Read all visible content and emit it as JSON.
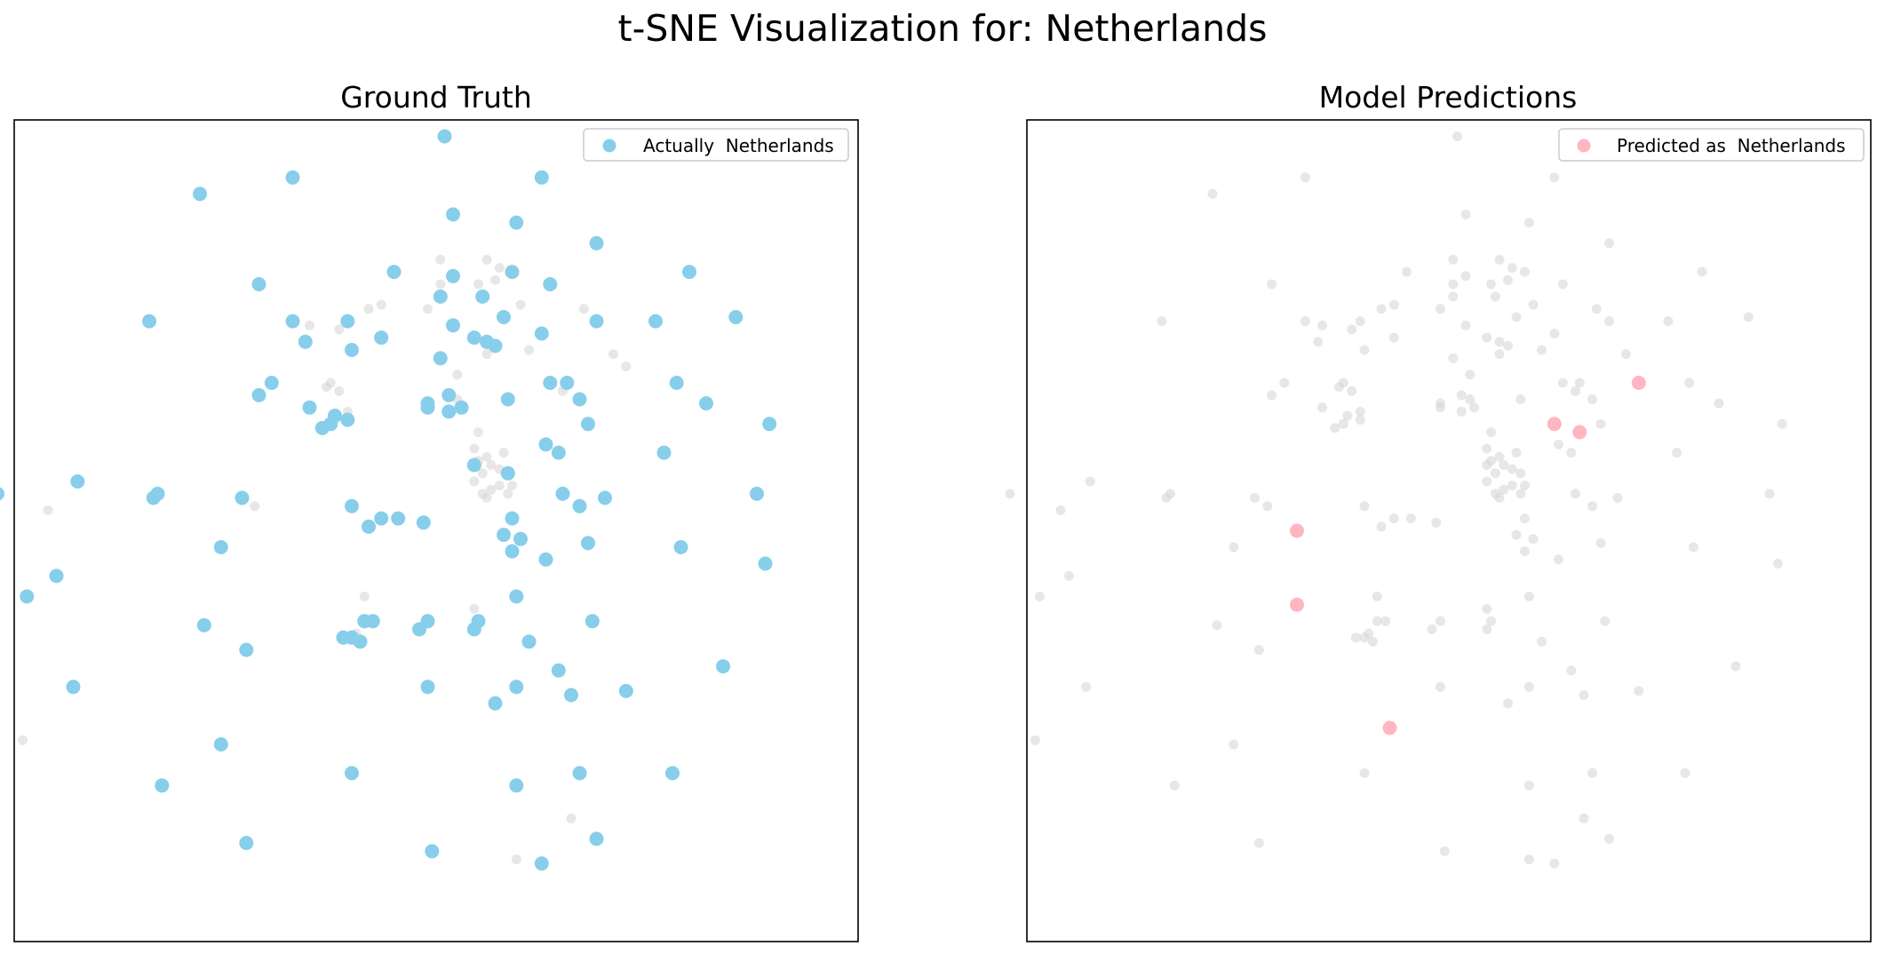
{
  "chart_data": {
    "title": "t-SNE Visualization for:  Netherlands",
    "type": "scatter",
    "xlim": [
      -10,
      10
    ],
    "ylim": [
      -10,
      10
    ],
    "axes_visible": false,
    "grid": false,
    "panels": [
      {
        "title": "Ground Truth",
        "legend": {
          "label": "Actually  Netherlands",
          "location": "upper right"
        },
        "highlight_color": "#87ceeb",
        "background_color": "#d3d3d3",
        "highlight_points": [
          [
            0.2,
            9.6
          ],
          [
            2.5,
            8.6
          ],
          [
            -3.4,
            8.6
          ],
          [
            -5.6,
            8.2
          ],
          [
            0.4,
            7.7
          ],
          [
            1.9,
            7.5
          ],
          [
            3.8,
            7.0
          ],
          [
            6.0,
            6.3
          ],
          [
            -1.0,
            6.3
          ],
          [
            0.4,
            6.2
          ],
          [
            1.8,
            6.3
          ],
          [
            2.7,
            6.0
          ],
          [
            -4.2,
            6.0
          ],
          [
            0.1,
            5.7
          ],
          [
            1.1,
            5.7
          ],
          [
            -2.1,
            5.1
          ],
          [
            -3.4,
            5.1
          ],
          [
            -6.8,
            5.1
          ],
          [
            7.1,
            5.2
          ],
          [
            1.6,
            5.2
          ],
          [
            3.8,
            5.1
          ],
          [
            5.2,
            5.1
          ],
          [
            0.4,
            5.0
          ],
          [
            -1.3,
            4.7
          ],
          [
            0.9,
            4.7
          ],
          [
            1.2,
            4.6
          ],
          [
            -3.1,
            4.6
          ],
          [
            2.5,
            4.8
          ],
          [
            1.4,
            4.5
          ],
          [
            -2.0,
            4.4
          ],
          [
            -3.9,
            3.6
          ],
          [
            0.1,
            4.2
          ],
          [
            -0.2,
            3.1
          ],
          [
            0.3,
            3.3
          ],
          [
            0.6,
            3.0
          ],
          [
            0.3,
            2.9
          ],
          [
            -0.2,
            3.0
          ],
          [
            2.7,
            3.6
          ],
          [
            3.1,
            3.6
          ],
          [
            5.7,
            3.6
          ],
          [
            -4.2,
            3.3
          ],
          [
            1.7,
            3.2
          ],
          [
            3.4,
            3.2
          ],
          [
            6.4,
            3.1
          ],
          [
            -3.0,
            3.0
          ],
          [
            -2.4,
            2.8
          ],
          [
            -2.7,
            2.5
          ],
          [
            -2.1,
            2.7
          ],
          [
            3.6,
            2.6
          ],
          [
            -2.5,
            2.6
          ],
          [
            7.9,
            2.6
          ],
          [
            2.6,
            2.1
          ],
          [
            5.4,
            1.9
          ],
          [
            2.9,
            1.9
          ],
          [
            0.9,
            1.6
          ],
          [
            1.7,
            1.4
          ],
          [
            -8.5,
            1.2
          ],
          [
            -6.6,
            0.9
          ],
          [
            -10.4,
            0.9
          ],
          [
            -6.7,
            0.8
          ],
          [
            3.0,
            0.9
          ],
          [
            7.6,
            0.9
          ],
          [
            4.0,
            0.8
          ],
          [
            3.4,
            0.6
          ],
          [
            -4.6,
            0.8
          ],
          [
            -1.3,
            0.3
          ],
          [
            -2.0,
            0.6
          ],
          [
            -0.9,
            0.3
          ],
          [
            1.8,
            0.3
          ],
          [
            -0.3,
            0.2
          ],
          [
            -1.6,
            0.1
          ],
          [
            2.0,
            -0.2
          ],
          [
            3.6,
            -0.3
          ],
          [
            1.6,
            -0.1
          ],
          [
            1.8,
            -0.5
          ],
          [
            -5.1,
            -0.4
          ],
          [
            5.8,
            -0.4
          ],
          [
            2.6,
            -0.7
          ],
          [
            7.8,
            -0.8
          ],
          [
            -9.0,
            -1.1
          ],
          [
            -9.7,
            -1.6
          ],
          [
            1.9,
            -1.6
          ],
          [
            -1.7,
            -2.2
          ],
          [
            -0.2,
            -2.2
          ],
          [
            3.7,
            -2.2
          ],
          [
            -1.5,
            -2.2
          ],
          [
            -0.4,
            -2.4
          ],
          [
            0.9,
            -2.4
          ],
          [
            1.0,
            -2.2
          ],
          [
            -5.5,
            -2.3
          ],
          [
            -2.2,
            -2.6
          ],
          [
            2.2,
            -2.7
          ],
          [
            -1.8,
            -2.7
          ],
          [
            -2.0,
            -2.6
          ],
          [
            -4.5,
            -2.9
          ],
          [
            6.8,
            -3.3
          ],
          [
            2.9,
            -3.4
          ],
          [
            1.9,
            -3.8
          ],
          [
            -0.2,
            -3.8
          ],
          [
            4.5,
            -3.9
          ],
          [
            -8.6,
            -3.8
          ],
          [
            3.2,
            -4.0
          ],
          [
            1.4,
            -4.2
          ],
          [
            -5.1,
            -5.2
          ],
          [
            -2.0,
            -5.9
          ],
          [
            5.6,
            -5.9
          ],
          [
            -6.5,
            -6.2
          ],
          [
            1.9,
            -6.2
          ],
          [
            3.4,
            -5.9
          ],
          [
            3.8,
            -7.5
          ],
          [
            -4.5,
            -7.6
          ],
          [
            -0.1,
            -7.8
          ],
          [
            2.5,
            -8.1
          ]
        ],
        "background_points": [
          [
            0.1,
            6.6
          ],
          [
            1.2,
            6.6
          ],
          [
            1.5,
            6.4
          ],
          [
            0.1,
            6.0
          ],
          [
            1.4,
            6.1
          ],
          [
            1.0,
            6.0
          ],
          [
            2.0,
            5.5
          ],
          [
            -1.6,
            5.4
          ],
          [
            -1.3,
            5.5
          ],
          [
            -0.2,
            5.4
          ],
          [
            3.5,
            5.4
          ],
          [
            -3.0,
            5.0
          ],
          [
            -2.3,
            4.9
          ],
          [
            1.2,
            4.3
          ],
          [
            2.2,
            4.4
          ],
          [
            4.2,
            4.3
          ],
          [
            4.5,
            4.0
          ],
          [
            0.5,
            3.8
          ],
          [
            -2.6,
            3.5
          ],
          [
            -2.3,
            3.4
          ],
          [
            -2.5,
            3.6
          ],
          [
            -2.1,
            2.9
          ],
          [
            0.5,
            3.2
          ],
          [
            3.0,
            3.4
          ],
          [
            1.0,
            2.4
          ],
          [
            0.9,
            2.0
          ],
          [
            1.0,
            1.7
          ],
          [
            1.3,
            1.6
          ],
          [
            1.1,
            1.4
          ],
          [
            1.5,
            1.1
          ],
          [
            1.3,
            1.0
          ],
          [
            1.1,
            0.9
          ],
          [
            0.9,
            1.2
          ],
          [
            1.2,
            0.8
          ],
          [
            1.7,
            0.9
          ],
          [
            1.8,
            1.1
          ],
          [
            1.2,
            1.8
          ],
          [
            1.6,
            1.9
          ],
          [
            1.5,
            1.5
          ],
          [
            -4.3,
            0.6
          ],
          [
            -9.2,
            0.5
          ],
          [
            -1.7,
            -1.6
          ],
          [
            0.9,
            -1.9
          ],
          [
            -1.9,
            -2.5
          ],
          [
            -9.8,
            -5.1
          ],
          [
            3.2,
            -7.0
          ],
          [
            1.9,
            -8.0
          ]
        ]
      },
      {
        "title": "Model Predictions",
        "legend": {
          "label": "Predicted as  Netherlands",
          "location": "upper right"
        },
        "highlight_color": "#ffb6c1",
        "background_color": "#d3d3d3",
        "highlight_points": [
          [
            4.5,
            3.6
          ],
          [
            2.5,
            2.6
          ],
          [
            3.1,
            2.4
          ],
          [
            -3.6,
            0.0
          ],
          [
            -3.6,
            -1.8
          ],
          [
            -1.4,
            -4.8
          ]
        ],
        "background_points": [
          [
            0.2,
            9.6
          ],
          [
            2.5,
            8.6
          ],
          [
            -3.4,
            8.6
          ],
          [
            -5.6,
            8.2
          ],
          [
            0.4,
            7.7
          ],
          [
            1.9,
            7.5
          ],
          [
            3.8,
            7.0
          ],
          [
            6.0,
            6.3
          ],
          [
            -1.0,
            6.3
          ],
          [
            0.4,
            6.2
          ],
          [
            1.8,
            6.3
          ],
          [
            2.7,
            6.0
          ],
          [
            -4.2,
            6.0
          ],
          [
            0.1,
            5.7
          ],
          [
            1.1,
            5.7
          ],
          [
            -2.1,
            5.1
          ],
          [
            -3.4,
            5.1
          ],
          [
            -6.8,
            5.1
          ],
          [
            7.1,
            5.2
          ],
          [
            1.6,
            5.2
          ],
          [
            3.8,
            5.1
          ],
          [
            5.2,
            5.1
          ],
          [
            0.4,
            5.0
          ],
          [
            -1.3,
            4.7
          ],
          [
            0.9,
            4.7
          ],
          [
            1.2,
            4.6
          ],
          [
            -3.1,
            4.6
          ],
          [
            2.5,
            4.8
          ],
          [
            1.4,
            4.5
          ],
          [
            -2.0,
            4.4
          ],
          [
            -3.9,
            3.6
          ],
          [
            0.1,
            4.2
          ],
          [
            -0.2,
            3.1
          ],
          [
            0.3,
            3.3
          ],
          [
            0.6,
            3.0
          ],
          [
            0.3,
            2.9
          ],
          [
            -0.2,
            3.0
          ],
          [
            2.7,
            3.6
          ],
          [
            3.1,
            3.6
          ],
          [
            5.7,
            3.6
          ],
          [
            -4.2,
            3.3
          ],
          [
            1.7,
            3.2
          ],
          [
            3.4,
            3.2
          ],
          [
            6.4,
            3.1
          ],
          [
            -3.0,
            3.0
          ],
          [
            -2.4,
            2.8
          ],
          [
            -2.7,
            2.5
          ],
          [
            -2.1,
            2.7
          ],
          [
            3.6,
            2.6
          ],
          [
            -2.5,
            2.6
          ],
          [
            7.9,
            2.6
          ],
          [
            2.6,
            2.1
          ],
          [
            5.4,
            1.9
          ],
          [
            2.9,
            1.9
          ],
          [
            0.9,
            1.6
          ],
          [
            1.7,
            1.4
          ],
          [
            -8.5,
            1.2
          ],
          [
            -6.6,
            0.9
          ],
          [
            -10.4,
            0.9
          ],
          [
            -6.7,
            0.8
          ],
          [
            3.0,
            0.9
          ],
          [
            7.6,
            0.9
          ],
          [
            4.0,
            0.8
          ],
          [
            3.4,
            0.6
          ],
          [
            -4.6,
            0.8
          ],
          [
            -1.3,
            0.3
          ],
          [
            -2.0,
            0.6
          ],
          [
            -0.9,
            0.3
          ],
          [
            1.8,
            0.3
          ],
          [
            -0.3,
            0.2
          ],
          [
            -1.6,
            0.1
          ],
          [
            2.0,
            -0.2
          ],
          [
            3.6,
            -0.3
          ],
          [
            1.6,
            -0.1
          ],
          [
            1.8,
            -0.5
          ],
          [
            -5.1,
            -0.4
          ],
          [
            5.8,
            -0.4
          ],
          [
            2.6,
            -0.7
          ],
          [
            7.8,
            -0.8
          ],
          [
            -9.0,
            -1.1
          ],
          [
            -9.7,
            -1.6
          ],
          [
            1.9,
            -1.6
          ],
          [
            -1.7,
            -2.2
          ],
          [
            -0.2,
            -2.2
          ],
          [
            3.7,
            -2.2
          ],
          [
            -1.5,
            -2.2
          ],
          [
            -0.4,
            -2.4
          ],
          [
            0.9,
            -2.4
          ],
          [
            1.0,
            -2.2
          ],
          [
            -5.5,
            -2.3
          ],
          [
            -2.2,
            -2.6
          ],
          [
            2.2,
            -2.7
          ],
          [
            -1.8,
            -2.7
          ],
          [
            -2.0,
            -2.6
          ],
          [
            -4.5,
            -2.9
          ],
          [
            6.8,
            -3.3
          ],
          [
            2.9,
            -3.4
          ],
          [
            1.9,
            -3.8
          ],
          [
            -0.2,
            -3.8
          ],
          [
            4.5,
            -3.9
          ],
          [
            -8.6,
            -3.8
          ],
          [
            3.2,
            -4.0
          ],
          [
            1.4,
            -4.2
          ],
          [
            -5.1,
            -5.2
          ],
          [
            -2.0,
            -5.9
          ],
          [
            5.6,
            -5.9
          ],
          [
            -6.5,
            -6.2
          ],
          [
            1.9,
            -6.2
          ],
          [
            3.4,
            -5.9
          ],
          [
            3.8,
            -7.5
          ],
          [
            -4.5,
            -7.6
          ],
          [
            -0.1,
            -7.8
          ],
          [
            2.5,
            -8.1
          ],
          [
            0.1,
            6.6
          ],
          [
            1.2,
            6.6
          ],
          [
            1.5,
            6.4
          ],
          [
            0.1,
            6.0
          ],
          [
            1.4,
            6.1
          ],
          [
            1.0,
            6.0
          ],
          [
            2.0,
            5.5
          ],
          [
            -1.6,
            5.4
          ],
          [
            -1.3,
            5.5
          ],
          [
            -0.2,
            5.4
          ],
          [
            3.5,
            5.4
          ],
          [
            -3.0,
            5.0
          ],
          [
            -2.3,
            4.9
          ],
          [
            1.2,
            4.3
          ],
          [
            2.2,
            4.4
          ],
          [
            4.2,
            4.3
          ],
          [
            0.5,
            3.8
          ],
          [
            -2.6,
            3.5
          ],
          [
            -2.3,
            3.4
          ],
          [
            -2.5,
            3.6
          ],
          [
            -2.1,
            2.9
          ],
          [
            0.5,
            3.2
          ],
          [
            3.0,
            3.4
          ],
          [
            1.0,
            2.4
          ],
          [
            0.9,
            2.0
          ],
          [
            1.0,
            1.7
          ],
          [
            1.3,
            1.6
          ],
          [
            1.1,
            1.4
          ],
          [
            1.5,
            1.1
          ],
          [
            1.3,
            1.0
          ],
          [
            1.1,
            0.9
          ],
          [
            0.9,
            1.2
          ],
          [
            1.2,
            0.8
          ],
          [
            1.7,
            0.9
          ],
          [
            1.8,
            1.1
          ],
          [
            1.2,
            1.8
          ],
          [
            1.6,
            1.9
          ],
          [
            1.5,
            1.5
          ],
          [
            -4.3,
            0.6
          ],
          [
            -9.2,
            0.5
          ],
          [
            -1.7,
            -1.6
          ],
          [
            0.9,
            -1.9
          ],
          [
            -1.9,
            -2.5
          ],
          [
            -9.8,
            -5.1
          ],
          [
            3.2,
            -7.0
          ],
          [
            1.9,
            -8.0
          ]
        ]
      }
    ]
  }
}
